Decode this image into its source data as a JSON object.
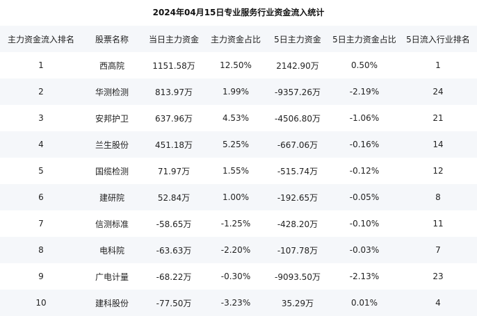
{
  "title": "2024年04月15日专业服务行业资金流入统计",
  "table": {
    "headers": [
      "主力资金流入排名",
      "股票名称",
      "当日主力资金",
      "主力资金占比",
      "5日主力资金",
      "5日主力资金占比",
      "5日流入行业排名"
    ],
    "rows": [
      [
        "1",
        "西高院",
        "1151.58万",
        "12.50%",
        "2142.90万",
        "0.50%",
        "1"
      ],
      [
        "2",
        "华测检测",
        "813.97万",
        "1.99%",
        "-9357.26万",
        "-2.19%",
        "24"
      ],
      [
        "3",
        "安邦护卫",
        "637.96万",
        "4.53%",
        "-4506.80万",
        "-1.06%",
        "21"
      ],
      [
        "4",
        "兰生股份",
        "451.18万",
        "5.25%",
        "-667.06万",
        "-0.16%",
        "14"
      ],
      [
        "5",
        "国缆检测",
        "71.97万",
        "1.55%",
        "-515.74万",
        "-0.12%",
        "12"
      ],
      [
        "6",
        "建研院",
        "52.84万",
        "1.00%",
        "-192.65万",
        "-0.05%",
        "8"
      ],
      [
        "7",
        "信测标准",
        "-58.65万",
        "-1.25%",
        "-428.20万",
        "-0.10%",
        "11"
      ],
      [
        "8",
        "电科院",
        "-63.63万",
        "-2.20%",
        "-107.78万",
        "-0.03%",
        "7"
      ],
      [
        "9",
        "广电计量",
        "-68.22万",
        "-0.30%",
        "-9093.50万",
        "-2.13%",
        "23"
      ],
      [
        "10",
        "建科股份",
        "-77.50万",
        "-3.23%",
        "35.29万",
        "0.01%",
        "4"
      ]
    ]
  }
}
